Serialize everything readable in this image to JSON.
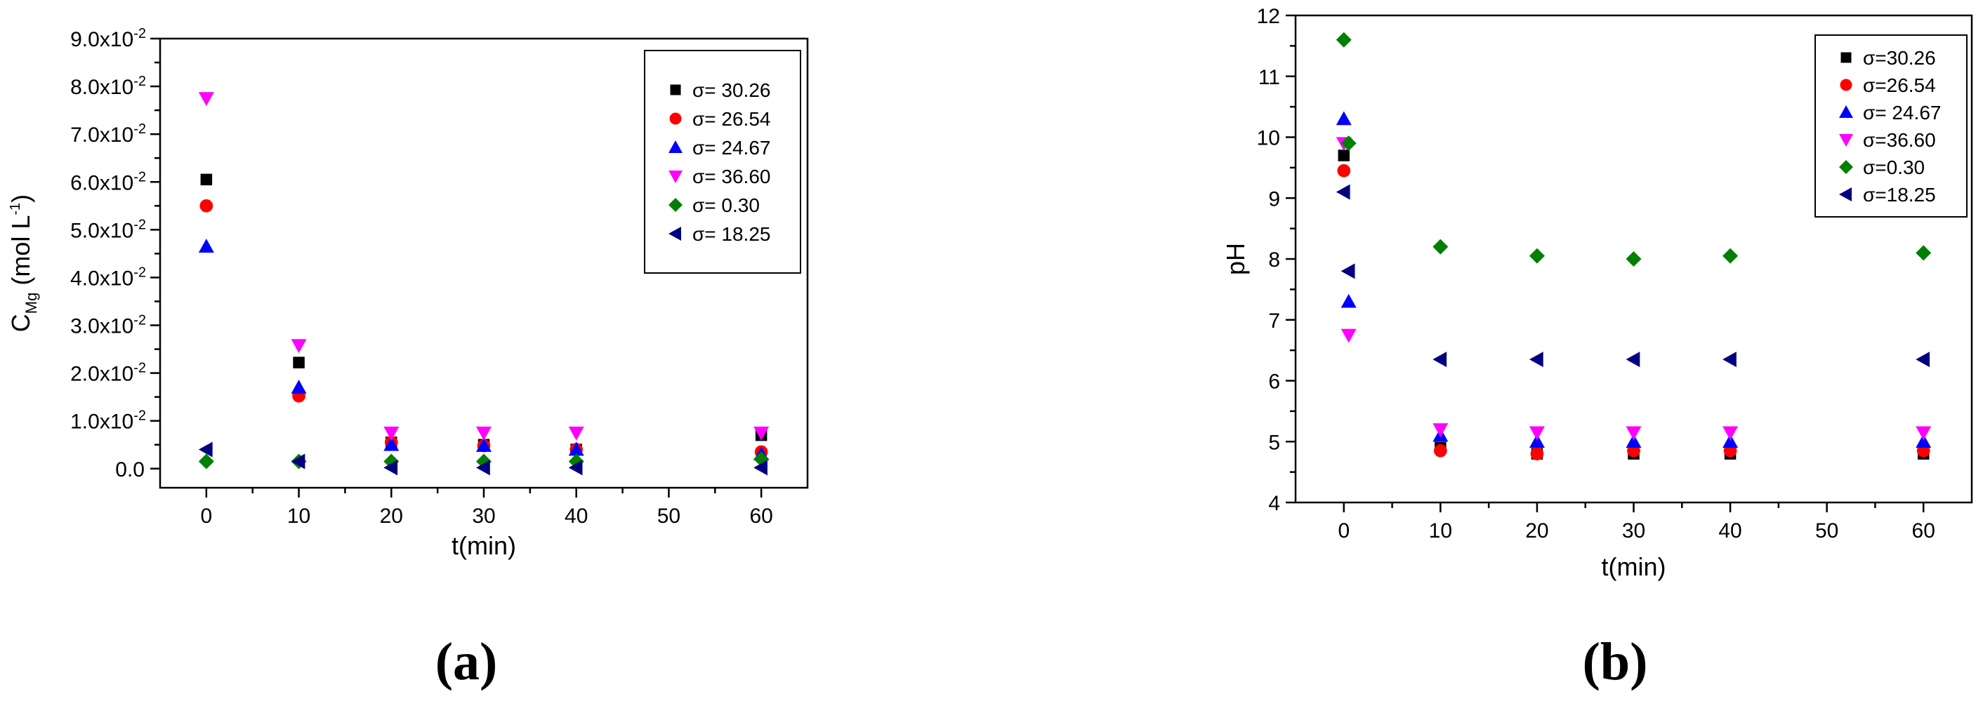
{
  "chart_data": [
    {
      "type": "scatter",
      "panel_label": "(a)",
      "xlabel": "t(min)",
      "ylabel": {
        "main": "C",
        "sub": "Mg",
        "unit_prefix": " (mol L",
        "unit_sup": "-1",
        "unit_suffix": ")"
      },
      "xlim": [
        -5,
        65
      ],
      "ylim": [
        -0.004,
        0.09
      ],
      "xticks": [
        0,
        10,
        20,
        30,
        40,
        50,
        60
      ],
      "yticks": [
        {
          "value": 0.0,
          "label": "0.0"
        },
        {
          "value": 0.01,
          "label": "1.0x10",
          "exp": "-2"
        },
        {
          "value": 0.02,
          "label": "2.0x10",
          "exp": "-2"
        },
        {
          "value": 0.03,
          "label": "3.0x10",
          "exp": "-2"
        },
        {
          "value": 0.04,
          "label": "4.0x10",
          "exp": "-2"
        },
        {
          "value": 0.05,
          "label": "5.0x10",
          "exp": "-2"
        },
        {
          "value": 0.06,
          "label": "6.0x10",
          "exp": "-2"
        },
        {
          "value": 0.07,
          "label": "7.0x10",
          "exp": "-2"
        },
        {
          "value": 0.08,
          "label": "8.0x10",
          "exp": "-2"
        },
        {
          "value": 0.09,
          "label": "9.0x10",
          "exp": "-2"
        }
      ],
      "grid": false,
      "legend_position": "top-right",
      "series": [
        {
          "name": "σ= 30.26",
          "marker": "square",
          "color": "#000000",
          "x": [
            0,
            10,
            20,
            30,
            40,
            60
          ],
          "y": [
            0.0605,
            0.0222,
            0.0055,
            0.005,
            0.004,
            0.007
          ]
        },
        {
          "name": "σ= 26.54",
          "marker": "circle",
          "color": "#ff0000",
          "x": [
            0,
            10,
            20,
            30,
            40,
            60
          ],
          "y": [
            0.055,
            0.0152,
            0.0055,
            0.0048,
            0.004,
            0.0035
          ]
        },
        {
          "name": "σ= 24.67",
          "marker": "triangle-up",
          "color": "#0000ff",
          "x": [
            0,
            10,
            20,
            30,
            40,
            60
          ],
          "y": [
            0.0465,
            0.017,
            0.005,
            0.0048,
            0.004,
            0.003
          ]
        },
        {
          "name": "σ= 36.60",
          "marker": "triangle-down",
          "color": "#ff00ff",
          "x": [
            0,
            10,
            20,
            30,
            40,
            60
          ],
          "y": [
            0.0775,
            0.0258,
            0.0075,
            0.0075,
            0.0075,
            0.0075
          ]
        },
        {
          "name": "σ= 0.30",
          "marker": "diamond",
          "color": "#008000",
          "x": [
            0,
            10,
            20,
            30,
            40,
            60
          ],
          "y": [
            0.0015,
            0.0015,
            0.0015,
            0.0015,
            0.0015,
            0.002
          ]
        },
        {
          "name": "σ= 18.25",
          "marker": "triangle-left",
          "color": "#000080",
          "x": [
            0,
            10,
            20,
            30,
            40,
            60
          ],
          "y": [
            0.004,
            0.0015,
            0.0002,
            0.0002,
            0.0002,
            0.0002
          ]
        }
      ]
    },
    {
      "type": "scatter",
      "panel_label": "(b)",
      "xlabel": "t(min)",
      "ylabel": {
        "main": "pH"
      },
      "xlim": [
        -5,
        65
      ],
      "ylim": [
        4,
        12
      ],
      "xticks": [
        0,
        10,
        20,
        30,
        40,
        50,
        60
      ],
      "yticks": [
        {
          "value": 4,
          "label": "4"
        },
        {
          "value": 5,
          "label": "5"
        },
        {
          "value": 6,
          "label": "6"
        },
        {
          "value": 7,
          "label": "7"
        },
        {
          "value": 8,
          "label": "8"
        },
        {
          "value": 9,
          "label": "9"
        },
        {
          "value": 10,
          "label": "10"
        },
        {
          "value": 11,
          "label": "11"
        },
        {
          "value": 12,
          "label": "12"
        }
      ],
      "grid": false,
      "legend_position": "top-right",
      "series": [
        {
          "name": "σ=30.26",
          "marker": "square",
          "color": "#000000",
          "x": [
            0,
            10,
            20,
            30,
            40,
            60
          ],
          "y": [
            9.7,
            4.9,
            4.8,
            4.8,
            4.8,
            4.8
          ]
        },
        {
          "name": "σ=26.54",
          "marker": "circle",
          "color": "#ff0000",
          "x": [
            0,
            10,
            20,
            30,
            40,
            60
          ],
          "y": [
            9.45,
            4.85,
            4.8,
            4.85,
            4.85,
            4.85
          ]
        },
        {
          "name": "σ= 24.67",
          "marker": "triangle-up",
          "color": "#0000ff",
          "x": [
            0,
            0.5,
            10,
            20,
            30,
            40,
            60
          ],
          "y": [
            10.3,
            7.3,
            5.1,
            5.0,
            5.0,
            5.0,
            5.0
          ]
        },
        {
          "name": "σ=36.60",
          "marker": "triangle-down",
          "color": "#ff00ff",
          "x": [
            0,
            0.5,
            10,
            20,
            30,
            40,
            60
          ],
          "y": [
            9.9,
            6.75,
            5.2,
            5.15,
            5.15,
            5.15,
            5.15
          ]
        },
        {
          "name": "σ=0.30",
          "marker": "diamond",
          "color": "#008000",
          "x": [
            0,
            0.5,
            10,
            20,
            30,
            40,
            60
          ],
          "y": [
            11.6,
            9.9,
            8.2,
            8.05,
            8.0,
            8.05,
            8.1
          ]
        },
        {
          "name": "σ=18.25",
          "marker": "triangle-left",
          "color": "#000080",
          "x": [
            0,
            0.5,
            10,
            20,
            30,
            40,
            60
          ],
          "y": [
            9.1,
            7.8,
            6.35,
            6.35,
            6.35,
            6.35,
            6.35
          ]
        }
      ]
    }
  ]
}
